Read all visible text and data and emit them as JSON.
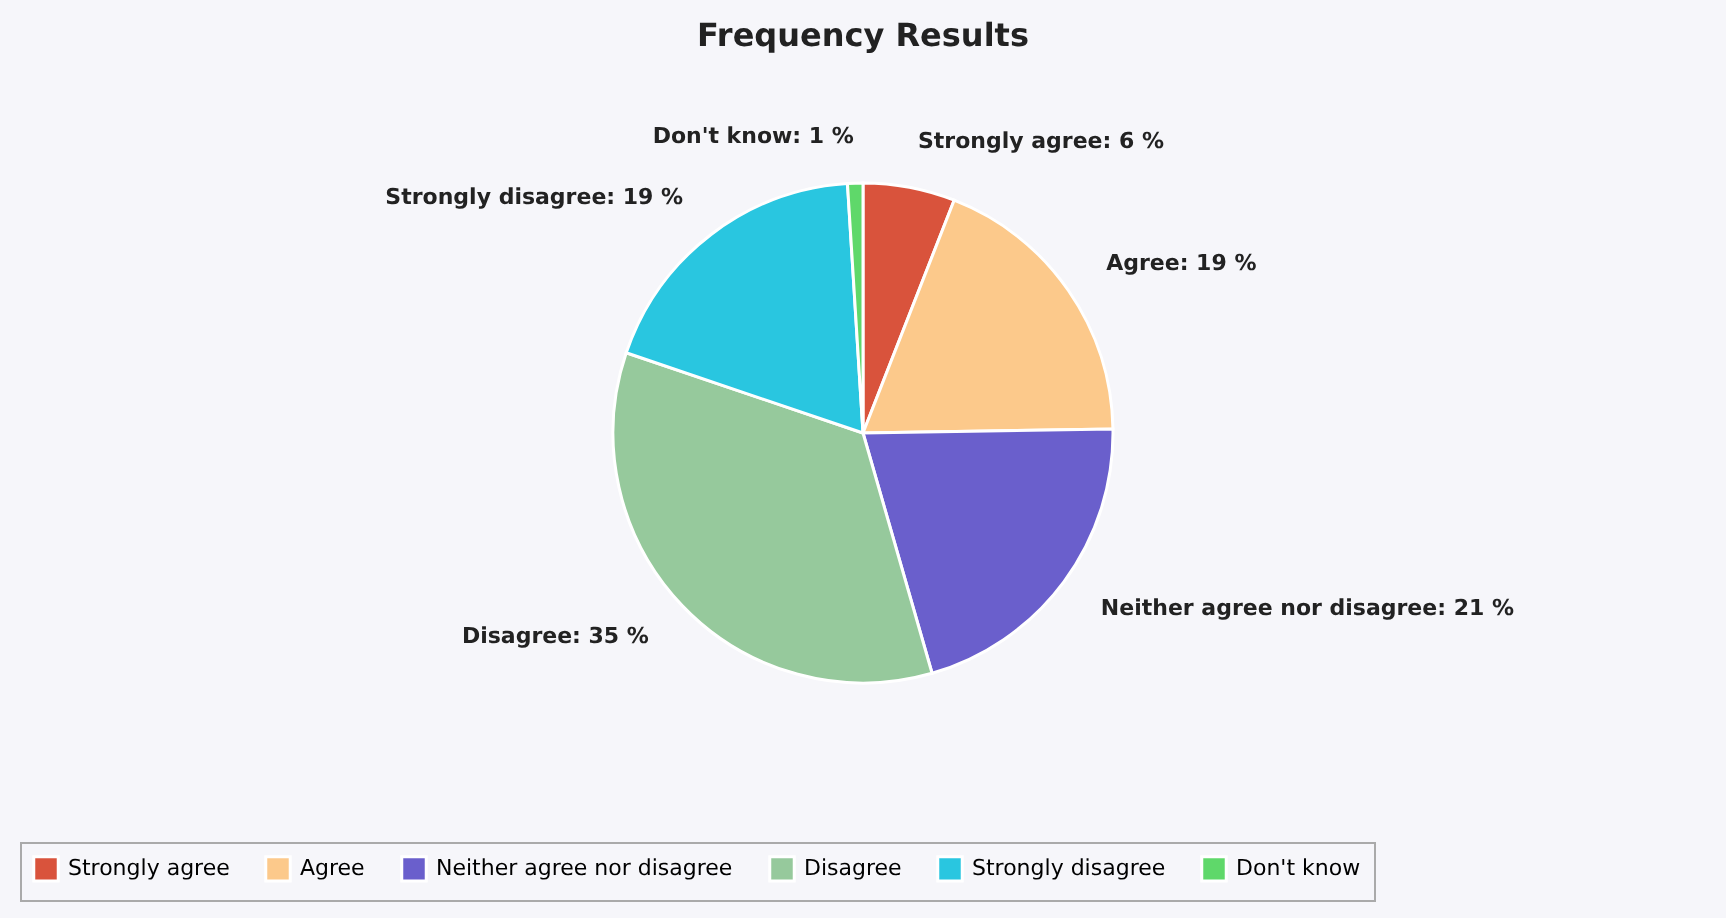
{
  "chart_data": {
    "type": "pie",
    "title": "Frequency Results",
    "categories": [
      "Strongly agree",
      "Agree",
      "Neither agree nor disagree",
      "Disagree",
      "Strongly disagree",
      "Don't know"
    ],
    "values": [
      6,
      19,
      21,
      35,
      19,
      1
    ],
    "value_labels": [
      "Strongly agree: 6 %",
      "Agree: 19 %",
      "Neither agree nor disagree: 21 %",
      "Disagree: 35 %",
      "Strongly disagree: 19 %",
      "Don't know: 1 %"
    ],
    "colors": [
      "#d9533c",
      "#fcc98b",
      "#6a5fcc",
      "#96c99c",
      "#29c6e0",
      "#5fd86a"
    ],
    "legend": "bottom"
  }
}
